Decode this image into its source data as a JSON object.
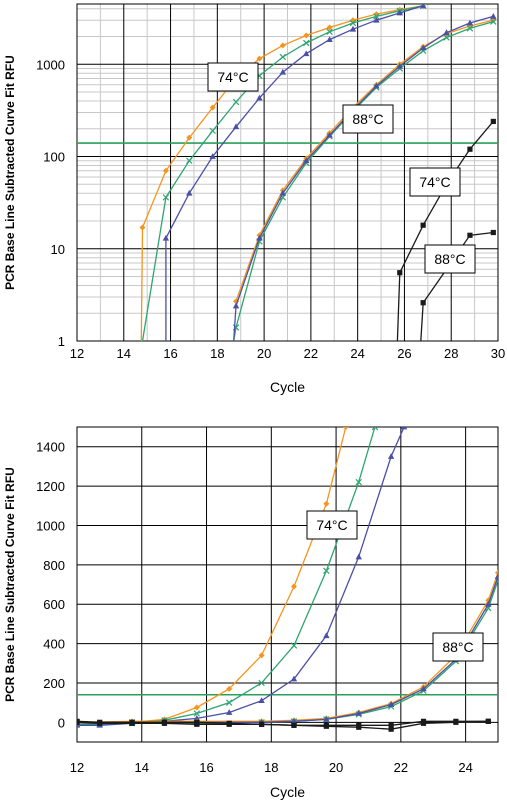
{
  "chart_data": [
    {
      "type": "line",
      "panel": "top",
      "scale": "log",
      "xlabel": "Cycle",
      "ylabel": "PCR Base Line Subtracted Curve Fit RFU",
      "xlim": [
        12,
        30
      ],
      "ylim": [
        1,
        4500
      ],
      "xticks": [
        "12",
        "14",
        "16",
        "18",
        "20",
        "22",
        "24",
        "26",
        "28",
        "30"
      ],
      "yticks": [
        "1",
        "10",
        "100",
        "1000"
      ],
      "threshold": 140,
      "annotations": [
        "74°C",
        "88°C",
        "74°C",
        "88°C"
      ],
      "series": [
        {
          "color": "#f7941d",
          "marker": "diamond",
          "x": [
            14.75,
            14.8,
            15.8,
            16.8,
            17.8,
            18.8,
            19.8,
            20.8,
            21.8,
            22.8,
            23.8,
            24.8,
            25.8,
            26.8
          ],
          "y": [
            1,
            17,
            70,
            160,
            340,
            700,
            1150,
            1600,
            2050,
            2500,
            3000,
            3500,
            3900,
            4300
          ]
        },
        {
          "color": "#2da56e",
          "marker": "x",
          "x": [
            14.8,
            15.8,
            16.8,
            17.8,
            18.8,
            19.8,
            20.8,
            21.8,
            22.8,
            23.8,
            24.8,
            25.8,
            26.8
          ],
          "y": [
            1,
            36,
            90,
            190,
            390,
            750,
            1200,
            1700,
            2250,
            2800,
            3300,
            3800,
            4300
          ]
        },
        {
          "color": "#4a4fa8",
          "marker": "triangle",
          "x": [
            15.8,
            15.8,
            16.8,
            17.8,
            18.8,
            19.8,
            20.8,
            21.8,
            22.8,
            23.8,
            24.8,
            25.8,
            26.8
          ],
          "y": [
            1,
            13,
            40,
            100,
            210,
            430,
            820,
            1300,
            1850,
            2400,
            3000,
            3600,
            4300
          ]
        },
        {
          "color": "#f7941d",
          "marker": "diamond",
          "x": [
            18.8,
            19.8,
            20.8,
            21.8,
            22.8,
            23.8,
            24.8,
            25.8,
            26.8,
            27.8,
            28.8,
            29.8
          ],
          "y": [
            2.7,
            14,
            43,
            95,
            180,
            340,
            600,
            1000,
            1550,
            2150,
            2600,
            3000
          ]
        },
        {
          "color": "#2da56e",
          "marker": "x",
          "x": [
            18.7,
            18.8,
            19.8,
            20.8,
            21.8,
            22.8,
            23.8,
            24.8,
            25.8,
            26.8,
            27.8,
            28.8,
            29.8
          ],
          "y": [
            1,
            1.4,
            12,
            36,
            85,
            165,
            310,
            560,
            900,
            1400,
            1950,
            2450,
            2900
          ]
        },
        {
          "color": "#4a4fa8",
          "marker": "triangle",
          "x": [
            18.7,
            18.8,
            19.8,
            20.8,
            21.8,
            22.8,
            23.8,
            24.8,
            25.8,
            26.8,
            27.8,
            28.8,
            29.8
          ],
          "y": [
            1,
            2.4,
            13,
            40,
            90,
            170,
            320,
            580,
            950,
            1500,
            2200,
            2800,
            3300
          ]
        },
        {
          "color": "#1a1a1a",
          "marker": "square",
          "x": [
            25.7,
            25.8,
            26.8,
            27.8,
            28.8,
            29.8
          ],
          "y": [
            1,
            5.5,
            18,
            50,
            120,
            240
          ]
        },
        {
          "color": "#1a1a1a",
          "marker": "square",
          "x": [
            26.7,
            26.8,
            27.8,
            28.8,
            29.8
          ],
          "y": [
            1,
            2.6,
            6,
            14,
            15
          ]
        }
      ]
    },
    {
      "type": "line",
      "panel": "bottom",
      "scale": "linear",
      "xlabel": "Cycle",
      "ylabel": "PCR Base Line Subtracted Curve Fit RFU",
      "xlim": [
        12,
        25
      ],
      "ylim": [
        -100,
        1500
      ],
      "xticks": [
        "12",
        "14",
        "16",
        "18",
        "20",
        "22",
        "24"
      ],
      "yticks": [
        "0",
        "200",
        "400",
        "600",
        "800",
        "1000",
        "1200",
        "1400"
      ],
      "threshold": 140,
      "annotations": [
        "74°C",
        "88°C"
      ],
      "series": [
        {
          "color": "#f7941d",
          "marker": "diamond",
          "x": [
            12,
            12.7,
            13.7,
            14.7,
            15.7,
            16.7,
            17.7,
            18.7,
            19.7,
            20.3
          ],
          "y": [
            -10,
            -5,
            0,
            15,
            75,
            170,
            340,
            690,
            1110,
            1500
          ]
        },
        {
          "color": "#2da56e",
          "marker": "x",
          "x": [
            12,
            12.7,
            13.7,
            14.7,
            15.7,
            16.7,
            17.7,
            18.7,
            19.7,
            20.7,
            21.2
          ],
          "y": [
            -10,
            -10,
            0,
            10,
            45,
            100,
            200,
            390,
            770,
            1220,
            1500
          ]
        },
        {
          "color": "#4a4fa8",
          "marker": "triangle",
          "x": [
            12,
            12.7,
            13.7,
            14.7,
            15.7,
            16.7,
            17.7,
            18.7,
            19.7,
            20.7,
            21.7,
            22.1
          ],
          "y": [
            -15,
            -15,
            -5,
            5,
            20,
            50,
            110,
            220,
            440,
            840,
            1350,
            1500
          ]
        },
        {
          "color": "#f7941d",
          "marker": "diamond",
          "x": [
            12,
            13.7,
            15.7,
            17.7,
            18.7,
            19.7,
            20.7,
            21.7,
            22.7,
            23.7,
            24.7,
            25
          ],
          "y": [
            0,
            5,
            5,
            5,
            10,
            20,
            50,
            95,
            180,
            340,
            620,
            760
          ]
        },
        {
          "color": "#2da56e",
          "marker": "x",
          "x": [
            12,
            13.7,
            15.7,
            17.7,
            18.7,
            19.7,
            20.7,
            21.7,
            22.7,
            23.7,
            24.7,
            25
          ],
          "y": [
            0,
            -5,
            -5,
            0,
            5,
            15,
            40,
            80,
            160,
            310,
            580,
            720
          ]
        },
        {
          "color": "#4a4fa8",
          "marker": "triangle",
          "x": [
            12,
            13.7,
            15.7,
            17.7,
            18.7,
            19.7,
            20.7,
            21.7,
            22.7,
            23.7,
            24.7,
            25
          ],
          "y": [
            0,
            0,
            0,
            0,
            5,
            15,
            45,
            90,
            170,
            320,
            600,
            740
          ]
        },
        {
          "color": "#1a1a1a",
          "marker": "square",
          "x": [
            12,
            12.7,
            13.7,
            14.7,
            15.7,
            16.7,
            17.7,
            18.7,
            19.7,
            20.7,
            21.7,
            22.7,
            23.7,
            24.7
          ],
          "y": [
            5,
            0,
            0,
            0,
            0,
            -5,
            -10,
            -15,
            -15,
            -15,
            -15,
            5,
            5,
            5
          ]
        },
        {
          "color": "#1a1a1a",
          "marker": "square",
          "x": [
            12,
            12.7,
            13.7,
            14.7,
            15.7,
            16.7,
            17.7,
            18.7,
            19.7,
            20.7,
            21.7,
            22.7,
            23.7,
            24.7
          ],
          "y": [
            0,
            -5,
            -5,
            -5,
            -10,
            -10,
            -10,
            -15,
            -20,
            -25,
            -35,
            -5,
            0,
            5
          ]
        }
      ]
    }
  ],
  "colors": {
    "threshold": "#2aa05a",
    "grid_major": "#000000",
    "grid_minor": "#c8c8c8",
    "orange": "#f7941d",
    "green": "#2da56e",
    "blue": "#4a4fa8",
    "black": "#1a1a1a"
  }
}
